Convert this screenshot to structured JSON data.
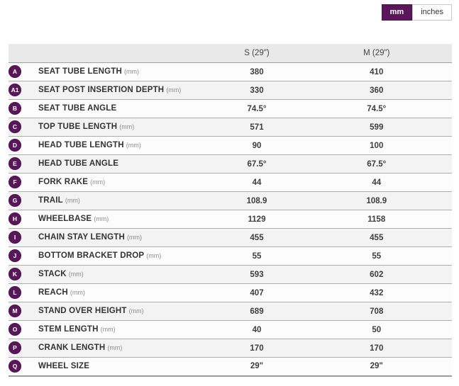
{
  "unit_toggle": {
    "mm_label": "mm",
    "inches_label": "inches",
    "selected": "mm"
  },
  "colors": {
    "accent_purple": "#5a165a",
    "header_bg": "#e9e9e9",
    "row_alt_bg": "#f3f3f3",
    "row_bg": "#fcfcfc",
    "border": "#adadad"
  },
  "table": {
    "columns": [
      "",
      "S (29\")",
      "M (29\")"
    ],
    "rows": [
      {
        "badge": "A",
        "label": "SEAT TUBE LENGTH",
        "unit": "(mm)",
        "values": [
          "380",
          "410"
        ]
      },
      {
        "badge": "A1",
        "label": "SEAT POST INSERTION DEPTH",
        "unit": "(mm)",
        "values": [
          "330",
          "360"
        ]
      },
      {
        "badge": "B",
        "label": "SEAT TUBE ANGLE",
        "unit": "",
        "values": [
          "74.5°",
          "74.5°"
        ]
      },
      {
        "badge": "C",
        "label": "TOP TUBE LENGTH",
        "unit": "(mm)",
        "values": [
          "571",
          "599"
        ]
      },
      {
        "badge": "D",
        "label": "HEAD TUBE LENGTH",
        "unit": "(mm)",
        "values": [
          "90",
          "100"
        ]
      },
      {
        "badge": "E",
        "label": "HEAD TUBE ANGLE",
        "unit": "",
        "values": [
          "67.5°",
          "67.5°"
        ]
      },
      {
        "badge": "F",
        "label": "FORK RAKE",
        "unit": "(mm)",
        "values": [
          "44",
          "44"
        ]
      },
      {
        "badge": "G",
        "label": "TRAIL",
        "unit": "(mm)",
        "values": [
          "108.9",
          "108.9"
        ]
      },
      {
        "badge": "H",
        "label": "WHEELBASE",
        "unit": "(mm)",
        "values": [
          "1129",
          "1158"
        ]
      },
      {
        "badge": "I",
        "label": "CHAIN STAY LENGTH",
        "unit": "(mm)",
        "values": [
          "455",
          "455"
        ]
      },
      {
        "badge": "J",
        "label": "BOTTOM BRACKET DROP",
        "unit": "(mm)",
        "values": [
          "55",
          "55"
        ]
      },
      {
        "badge": "K",
        "label": "STACK",
        "unit": "(mm)",
        "values": [
          "593",
          "602"
        ]
      },
      {
        "badge": "L",
        "label": "REACH",
        "unit": "(mm)",
        "values": [
          "407",
          "432"
        ]
      },
      {
        "badge": "M",
        "label": "STAND OVER HEIGHT",
        "unit": "(mm)",
        "values": [
          "689",
          "708"
        ]
      },
      {
        "badge": "O",
        "label": "STEM LENGTH",
        "unit": "(mm)",
        "values": [
          "40",
          "50"
        ]
      },
      {
        "badge": "P",
        "label": "CRANK LENGTH",
        "unit": "(mm)",
        "values": [
          "170",
          "170"
        ]
      },
      {
        "badge": "Q",
        "label": "WHEEL SIZE",
        "unit": "",
        "values": [
          "29\"",
          "29\""
        ]
      }
    ]
  }
}
